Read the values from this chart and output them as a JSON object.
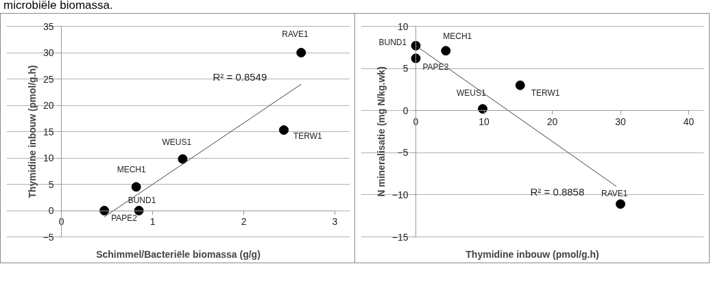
{
  "chart_data": [
    {
      "type": "scatter",
      "xlabel": "Schimmel/Bacteriële biomassa (g/g)",
      "ylabel": "Thymidine inbouw (pmol/g.h)",
      "xlim": [
        0,
        3
      ],
      "xticks": [
        0,
        1,
        2,
        3
      ],
      "ylim": [
        -5,
        35
      ],
      "yticks": [
        -5,
        0,
        5,
        10,
        15,
        20,
        25,
        30,
        35
      ],
      "grid": "y",
      "marker": "circle",
      "series": [
        {
          "color": "#000000",
          "x": [
            2.63,
            2.44,
            1.33,
            0.82,
            0.85,
            0.47
          ],
          "values": [
            30.0,
            15.3,
            9.8,
            4.5,
            0,
            0
          ]
        },
        {
          "type": "line",
          "marker": "none",
          "color": "#404040",
          "x": [
            0.47,
            2.63
          ],
          "values": [
            -1.2,
            24.0
          ]
        }
      ],
      "annotations": [
        "microbiële biomassa.",
        {
          "text": "RAVE1",
          "x": 2.63,
          "y": 30.0
        },
        {
          "text": "TERW1",
          "x": 2.44,
          "y": 15.3
        },
        {
          "text": "WEUS1",
          "x": 1.33,
          "y": 9.8
        },
        {
          "text": "MECH1",
          "x": 0.82,
          "y": 4.5
        },
        {
          "text": "BUND1",
          "x": 0.85,
          "y": 0
        },
        {
          "text": "PAPE2",
          "x": 0.47,
          "y": 0
        },
        "R² = 0.8549"
      ]
    },
    {
      "type": "scatter",
      "xlabel": "Thymidine inbouw (pmol/g.h)",
      "ylabel": "N mineralisatie (mg N/kg.wk)",
      "xlim": [
        0,
        40
      ],
      "xticks": [
        0,
        10,
        20,
        30,
        40
      ],
      "ylim": [
        -15,
        10
      ],
      "yticks": [
        -15,
        -10,
        -5,
        0,
        5,
        10
      ],
      "grid": "y",
      "marker": "circle",
      "series": [
        {
          "color": "#000000",
          "x": [
            0,
            4.4,
            0,
            15.3,
            9.8,
            30.0
          ],
          "values": [
            7.7,
            7.1,
            6.2,
            3.0,
            0.2,
            -11.1
          ]
        },
        {
          "type": "line",
          "marker": "none",
          "color": "#404040",
          "x": [
            0,
            29.4
          ],
          "values": [
            7.7,
            -9.0
          ]
        }
      ],
      "annotations": [
        {
          "text": "BUND1",
          "x": 0,
          "y": 7.7
        },
        {
          "text": "MECH1",
          "x": 4.4,
          "y": 7.1
        },
        {
          "text": "PAPE2",
          "x": 0,
          "y": 6.2
        },
        {
          "text": "TERW1",
          "x": 15.3,
          "y": 3.0
        },
        {
          "text": "WEUS1",
          "x": 9.8,
          "y": 0.2
        },
        {
          "text": "RAVE1",
          "x": 30.0,
          "y": -11.1
        },
        "R² = 0.8858"
      ]
    }
  ]
}
